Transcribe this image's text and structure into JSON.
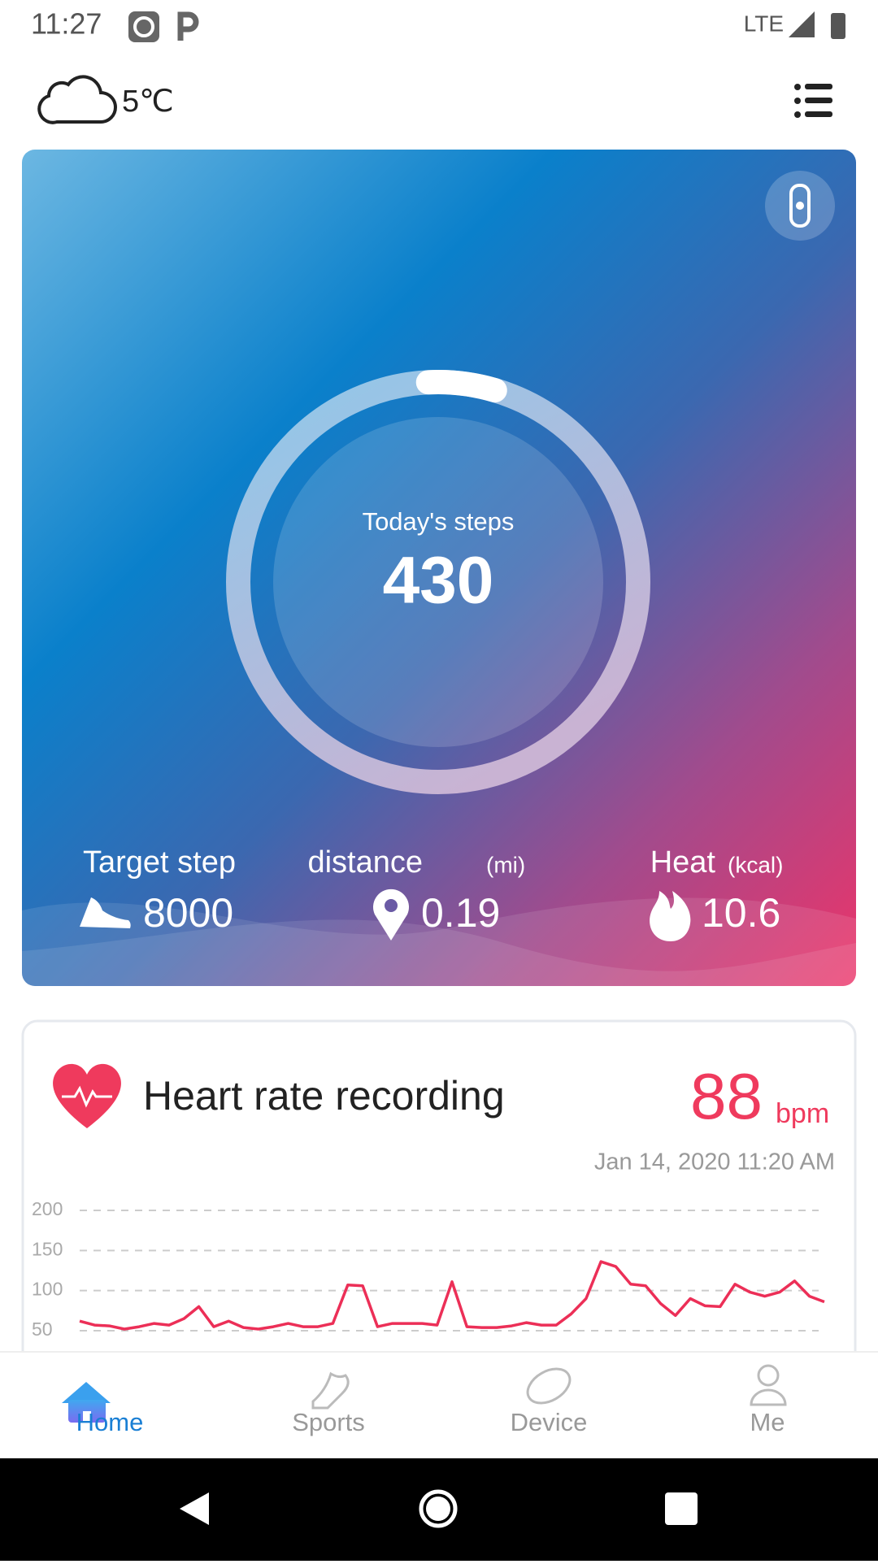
{
  "status_bar": {
    "time": "11:27",
    "network": "LTE"
  },
  "weather": {
    "temperature": "5℃"
  },
  "steps_card": {
    "steps": {
      "label": "Today's steps",
      "value": 430
    },
    "target": {
      "label": "Target step",
      "value": 8000
    },
    "distance": {
      "label": "distance",
      "unit": "(mi)",
      "value": 0.19
    },
    "heat": {
      "label": "Heat",
      "unit": "(kcal)",
      "value": 10.6
    }
  },
  "heart_card": {
    "title": "Heart rate recording",
    "value": 88,
    "unit": "bpm",
    "timestamp": "Jan 14, 2020 11:20 AM"
  },
  "chart_data": {
    "type": "line",
    "color": "#ec2f57",
    "ylim": [
      50,
      200
    ],
    "yticks": [
      50,
      100,
      150,
      200
    ],
    "grid": true,
    "values": [
      62,
      57,
      56,
      52,
      55,
      59,
      57,
      65,
      80,
      55,
      62,
      54,
      52,
      55,
      59,
      55,
      55,
      59,
      107,
      106,
      55,
      59,
      59,
      59,
      57,
      111,
      55,
      54,
      54,
      56,
      60,
      57,
      57,
      71,
      90,
      136,
      130,
      108,
      106,
      84,
      69,
      90,
      81,
      80,
      108,
      98,
      93,
      98,
      112,
      93,
      86
    ]
  },
  "nav": {
    "tabs": [
      "Home",
      "Sports",
      "Device",
      "Me"
    ]
  }
}
